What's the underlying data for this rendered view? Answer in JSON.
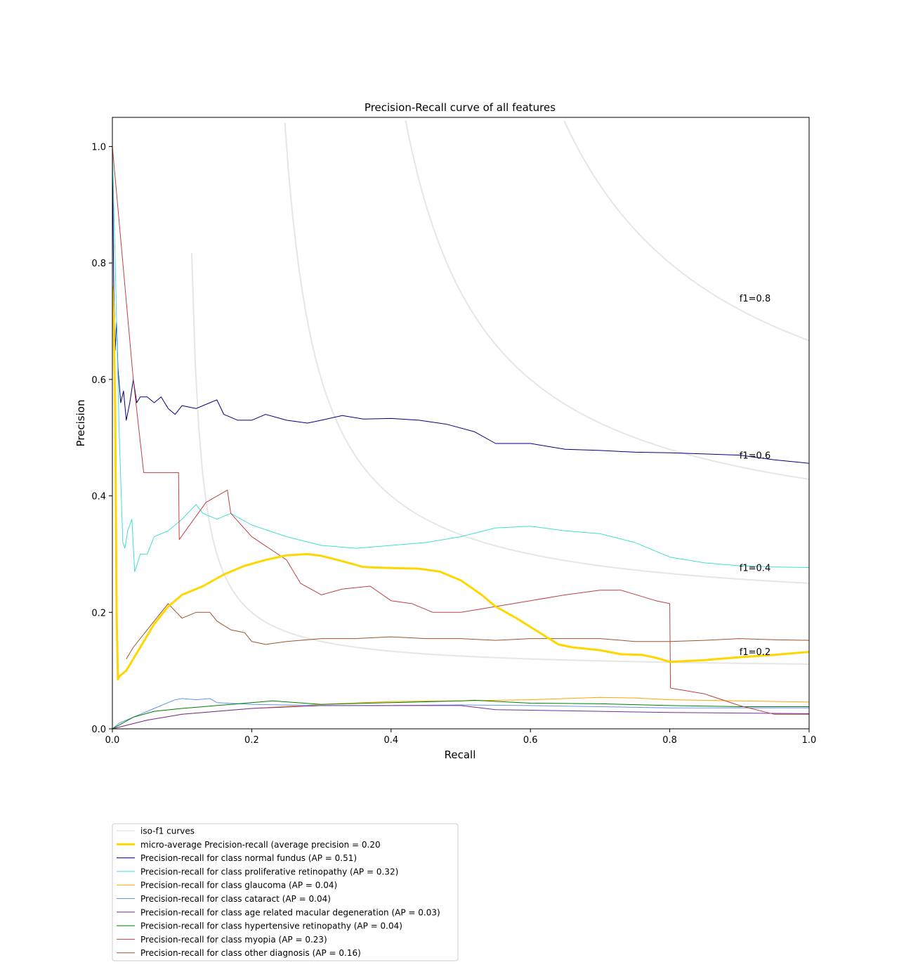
{
  "chart_data": {
    "type": "line",
    "title": "Precision-Recall curve of all features",
    "xlabel": "Recall",
    "ylabel": "Precision",
    "xlim": [
      0.0,
      1.0
    ],
    "ylim": [
      0.0,
      1.05
    ],
    "xticks": [
      0.0,
      0.2,
      0.4,
      0.6,
      0.8,
      1.0
    ],
    "xtick_labels": [
      "0.0",
      "0.2",
      "0.4",
      "0.6",
      "0.8",
      "1.0"
    ],
    "yticks": [
      0.0,
      0.2,
      0.4,
      0.6,
      0.8,
      1.0
    ],
    "ytick_labels": [
      "0.0",
      "0.2",
      "0.4",
      "0.6",
      "0.8",
      "1.0"
    ],
    "grid": false,
    "legend_position": "below-left",
    "iso_f1": {
      "legend": "iso-f1 curves",
      "color": "#e6e6e6",
      "levels": [
        0.2,
        0.4,
        0.6,
        0.8
      ],
      "labels": [
        "f1=0.2",
        "f1=0.4",
        "f1=0.6",
        "f1=0.8"
      ]
    },
    "series": [
      {
        "name": "micro-average Precision-recall (average precision = 0.20",
        "color": "#ffd700",
        "bold": true,
        "x": [
          0,
          0.002,
          0.004,
          0.006,
          0.008,
          0.01,
          0.02,
          0.04,
          0.06,
          0.08,
          0.1,
          0.13,
          0.16,
          0.19,
          0.22,
          0.25,
          0.28,
          0.3,
          0.33,
          0.36,
          0.4,
          0.44,
          0.47,
          0.5,
          0.53,
          0.55,
          0.58,
          0.6,
          0.62,
          0.64,
          0.66,
          0.7,
          0.73,
          0.76,
          0.78,
          0.8,
          0.85,
          0.9,
          0.95,
          1.0
        ],
        "y": [
          0.76,
          0.7,
          0.55,
          0.2,
          0.085,
          0.09,
          0.1,
          0.14,
          0.18,
          0.21,
          0.23,
          0.245,
          0.265,
          0.28,
          0.29,
          0.298,
          0.3,
          0.297,
          0.288,
          0.278,
          0.276,
          0.275,
          0.27,
          0.255,
          0.23,
          0.21,
          0.19,
          0.175,
          0.16,
          0.145,
          0.14,
          0.135,
          0.128,
          0.127,
          0.122,
          0.115,
          0.118,
          0.123,
          0.127,
          0.132
        ]
      },
      {
        "name": "Precision-recall for class normal fundus (AP = 0.51)",
        "color": "#000080",
        "x": [
          0,
          0.002,
          0.004,
          0.006,
          0.008,
          0.012,
          0.016,
          0.02,
          0.025,
          0.03,
          0.035,
          0.04,
          0.05,
          0.06,
          0.07,
          0.08,
          0.09,
          0.1,
          0.12,
          0.14,
          0.15,
          0.16,
          0.18,
          0.2,
          0.22,
          0.25,
          0.28,
          0.3,
          0.33,
          0.36,
          0.4,
          0.44,
          0.48,
          0.52,
          0.55,
          0.6,
          0.65,
          0.7,
          0.75,
          0.8,
          0.85,
          0.9,
          0.95,
          1.0
        ],
        "y": [
          1.0,
          0.75,
          0.65,
          0.7,
          0.62,
          0.56,
          0.58,
          0.53,
          0.56,
          0.6,
          0.56,
          0.57,
          0.57,
          0.56,
          0.57,
          0.55,
          0.54,
          0.555,
          0.55,
          0.56,
          0.565,
          0.54,
          0.53,
          0.53,
          0.54,
          0.53,
          0.525,
          0.53,
          0.538,
          0.532,
          0.533,
          0.53,
          0.523,
          0.51,
          0.49,
          0.49,
          0.48,
          0.478,
          0.475,
          0.474,
          0.472,
          0.47,
          0.462,
          0.456
        ]
      },
      {
        "name": "Precision-recall for class proliferative retinopathy (AP = 0.32)",
        "color": "#40e0d0",
        "x": [
          0,
          0.003,
          0.006,
          0.01,
          0.015,
          0.018,
          0.022,
          0.028,
          0.032,
          0.035,
          0.04,
          0.05,
          0.06,
          0.08,
          0.1,
          0.12,
          0.13,
          0.15,
          0.17,
          0.2,
          0.25,
          0.3,
          0.35,
          0.4,
          0.45,
          0.5,
          0.55,
          0.6,
          0.65,
          0.7,
          0.75,
          0.8,
          0.85,
          0.9,
          0.95,
          1.0
        ],
        "y": [
          1.0,
          0.85,
          0.7,
          0.5,
          0.32,
          0.31,
          0.34,
          0.36,
          0.27,
          0.28,
          0.3,
          0.3,
          0.33,
          0.34,
          0.36,
          0.385,
          0.37,
          0.36,
          0.37,
          0.35,
          0.33,
          0.315,
          0.31,
          0.315,
          0.32,
          0.33,
          0.345,
          0.348,
          0.34,
          0.335,
          0.32,
          0.295,
          0.285,
          0.28,
          0.278,
          0.277
        ]
      },
      {
        "name": "Precision-recall for class glaucoma (AP = 0.04)",
        "color": "#ffa500",
        "x": [
          0,
          0.05,
          0.1,
          0.2,
          0.3,
          0.4,
          0.5,
          0.6,
          0.7,
          0.75,
          0.8,
          0.9,
          1.0
        ],
        "y": [
          0.0,
          0.015,
          0.025,
          0.035,
          0.042,
          0.047,
          0.048,
          0.05,
          0.054,
          0.053,
          0.05,
          0.048,
          0.046
        ]
      },
      {
        "name": "Precision-recall for class cataract (AP = 0.04)",
        "color": "#6495ed",
        "x": [
          0,
          0.005,
          0.01,
          0.03,
          0.06,
          0.09,
          0.1,
          0.12,
          0.14,
          0.15,
          0.2,
          0.3,
          0.4,
          0.5,
          0.6,
          0.7,
          0.8,
          0.9,
          1.0
        ],
        "y": [
          0.0,
          0.005,
          0.01,
          0.02,
          0.035,
          0.05,
          0.052,
          0.05,
          0.052,
          0.045,
          0.042,
          0.04,
          0.04,
          0.041,
          0.04,
          0.038,
          0.036,
          0.036,
          0.036
        ]
      },
      {
        "name": "Precision-recall for class age related macular degeneration (AP = 0.03)",
        "color": "#7030a0",
        "x": [
          0,
          0.05,
          0.1,
          0.2,
          0.3,
          0.4,
          0.5,
          0.55,
          0.6,
          0.7,
          0.8,
          0.9,
          1.0
        ],
        "y": [
          0.0,
          0.015,
          0.025,
          0.035,
          0.04,
          0.04,
          0.04,
          0.033,
          0.032,
          0.03,
          0.028,
          0.027,
          0.026
        ]
      },
      {
        "name": "Precision-recall for class hypertensive retinopathy (AP = 0.04)",
        "color": "#008000",
        "x": [
          0,
          0.03,
          0.06,
          0.1,
          0.15,
          0.2,
          0.23,
          0.3,
          0.4,
          0.5,
          0.52,
          0.6,
          0.7,
          0.8,
          0.9,
          1.0
        ],
        "y": [
          0.0,
          0.02,
          0.03,
          0.035,
          0.04,
          0.045,
          0.048,
          0.042,
          0.045,
          0.048,
          0.049,
          0.044,
          0.043,
          0.04,
          0.038,
          0.038
        ]
      },
      {
        "name": "Precision-recall for class myopia (AP = 0.23)",
        "color": "#c04040",
        "x": [
          0,
          0.03,
          0.045,
          0.095,
          0.096,
          0.135,
          0.136,
          0.165,
          0.17,
          0.2,
          0.25,
          0.27,
          0.3,
          0.33,
          0.37,
          0.4,
          0.43,
          0.46,
          0.5,
          0.55,
          0.6,
          0.65,
          0.7,
          0.73,
          0.78,
          0.8,
          0.801,
          0.85,
          0.9,
          0.95,
          1.0
        ],
        "y": [
          1.0,
          0.6,
          0.44,
          0.44,
          0.325,
          0.39,
          0.39,
          0.41,
          0.37,
          0.33,
          0.29,
          0.25,
          0.23,
          0.24,
          0.245,
          0.22,
          0.215,
          0.2,
          0.2,
          0.21,
          0.22,
          0.23,
          0.238,
          0.238,
          0.22,
          0.215,
          0.07,
          0.06,
          0.04,
          0.025,
          0.025
        ]
      },
      {
        "name": "Precision-recall for class other diagnosis (AP = 0.16)",
        "color": "#a0522d",
        "x": [
          0.02,
          0.03,
          0.05,
          0.07,
          0.08,
          0.1,
          0.12,
          0.14,
          0.15,
          0.17,
          0.19,
          0.2,
          0.22,
          0.25,
          0.3,
          0.35,
          0.4,
          0.45,
          0.5,
          0.55,
          0.6,
          0.65,
          0.7,
          0.75,
          0.8,
          0.85,
          0.9,
          0.95,
          1.0
        ],
        "y": [
          0.12,
          0.14,
          0.17,
          0.2,
          0.215,
          0.19,
          0.2,
          0.2,
          0.185,
          0.17,
          0.165,
          0.15,
          0.145,
          0.15,
          0.155,
          0.155,
          0.158,
          0.155,
          0.155,
          0.152,
          0.155,
          0.155,
          0.155,
          0.15,
          0.15,
          0.152,
          0.155,
          0.153,
          0.152
        ]
      }
    ]
  }
}
